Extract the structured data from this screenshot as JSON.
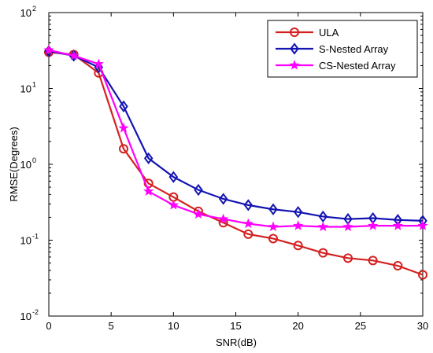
{
  "chart_data": {
    "type": "line",
    "title": "",
    "xlabel": "SNR(dB)",
    "ylabel": "RMSE(Degrees)",
    "xlim": [
      0,
      30
    ],
    "ylim": [
      0.01,
      100
    ],
    "yscale": "log",
    "grid": false,
    "legend_position": "top-right",
    "x_ticks": [
      0,
      5,
      10,
      15,
      20,
      25,
      30
    ],
    "x_tick_labels": [
      "0",
      "5",
      "10",
      "15",
      "20",
      "25",
      "30"
    ],
    "y_ticks": [
      0.01,
      0.1,
      1,
      10,
      100
    ],
    "y_tick_labels": [
      {
        "base": "10",
        "exp": "-2"
      },
      {
        "base": "10",
        "exp": "-1"
      },
      {
        "base": "10",
        "exp": "0"
      },
      {
        "base": "10",
        "exp": "1"
      },
      {
        "base": "10",
        "exp": "2"
      }
    ],
    "x": [
      0,
      2,
      4,
      6,
      8,
      10,
      12,
      14,
      16,
      18,
      20,
      22,
      24,
      26,
      28,
      30
    ],
    "series": [
      {
        "name": "ULA",
        "color": "#d42020",
        "marker": "circle",
        "values": [
          30,
          28,
          16,
          1.6,
          0.56,
          0.37,
          0.24,
          0.17,
          0.12,
          0.105,
          0.085,
          0.068,
          0.058,
          0.054,
          0.046,
          0.035
        ]
      },
      {
        "name": "S-Nested Array",
        "color": "#1414b4",
        "marker": "diamond",
        "values": [
          31,
          27,
          19,
          5.8,
          1.2,
          0.68,
          0.46,
          0.35,
          0.29,
          0.255,
          0.235,
          0.205,
          0.19,
          0.195,
          0.185,
          0.18
        ]
      },
      {
        "name": "CS-Nested Array",
        "color": "#ff00ff",
        "marker": "star",
        "values": [
          32,
          27,
          21,
          3.0,
          0.44,
          0.29,
          0.22,
          0.19,
          0.165,
          0.15,
          0.155,
          0.15,
          0.15,
          0.155,
          0.155,
          0.155
        ]
      }
    ]
  }
}
